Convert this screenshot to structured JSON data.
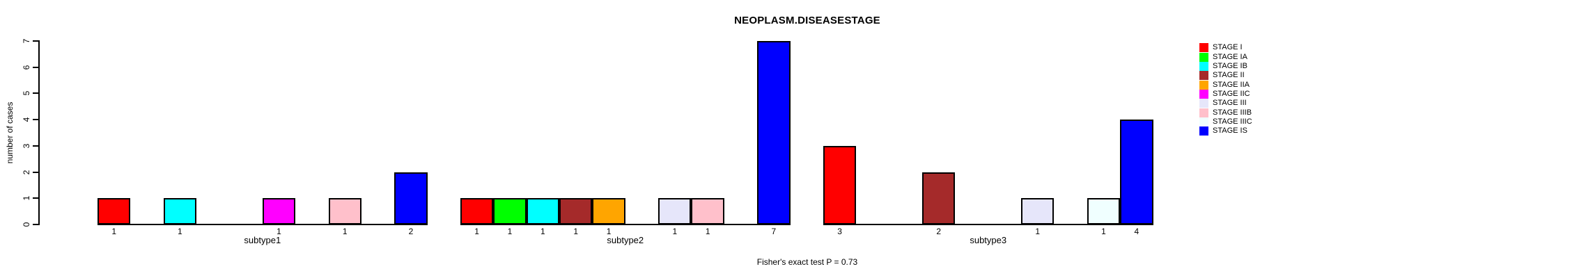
{
  "title": "NEOPLASM.DISEASESTAGE",
  "caption": "Fisher's exact test P = 0.73",
  "y_axis_label": "number of cases",
  "chart_data": {
    "type": "bar",
    "title": "NEOPLASM.DISEASESTAGE",
    "xlabel": "",
    "ylabel": "number of cases",
    "ylim": [
      0,
      7
    ],
    "y_ticks": [
      0,
      1,
      2,
      3,
      4,
      5,
      6,
      7
    ],
    "grid": false,
    "legend_position": "right",
    "bar_value_labels_shown": true,
    "footer": "Fisher's exact test P = 0.73",
    "categories": [
      "subtype1",
      "subtype2",
      "subtype3"
    ],
    "series": [
      {
        "name": "STAGE I",
        "color": "#FF0000",
        "values": [
          1,
          1,
          3
        ]
      },
      {
        "name": "STAGE IA",
        "color": "#00FF00",
        "values": [
          0,
          1,
          0
        ]
      },
      {
        "name": "STAGE IB",
        "color": "#00FFFF",
        "values": [
          1,
          1,
          0
        ]
      },
      {
        "name": "STAGE II",
        "color": "#A52A2A",
        "values": [
          0,
          1,
          2
        ]
      },
      {
        "name": "STAGE IIA",
        "color": "#FFA500",
        "values": [
          0,
          1,
          0
        ]
      },
      {
        "name": "STAGE IIC",
        "color": "#FF00FF",
        "values": [
          1,
          0,
          0
        ]
      },
      {
        "name": "STAGE III",
        "color": "#E6E6FA",
        "values": [
          0,
          1,
          1
        ]
      },
      {
        "name": "STAGE IIIB",
        "color": "#FFC0CB",
        "values": [
          1,
          1,
          0
        ]
      },
      {
        "name": "STAGE IIIC",
        "color": "#F0FFFF",
        "values": [
          0,
          0,
          1
        ]
      },
      {
        "name": "STAGE IS",
        "color": "#0000FF",
        "values": [
          2,
          7,
          4
        ]
      }
    ]
  },
  "colors": {
    "foreground": "#000000",
    "background": "#FFFFFF"
  }
}
